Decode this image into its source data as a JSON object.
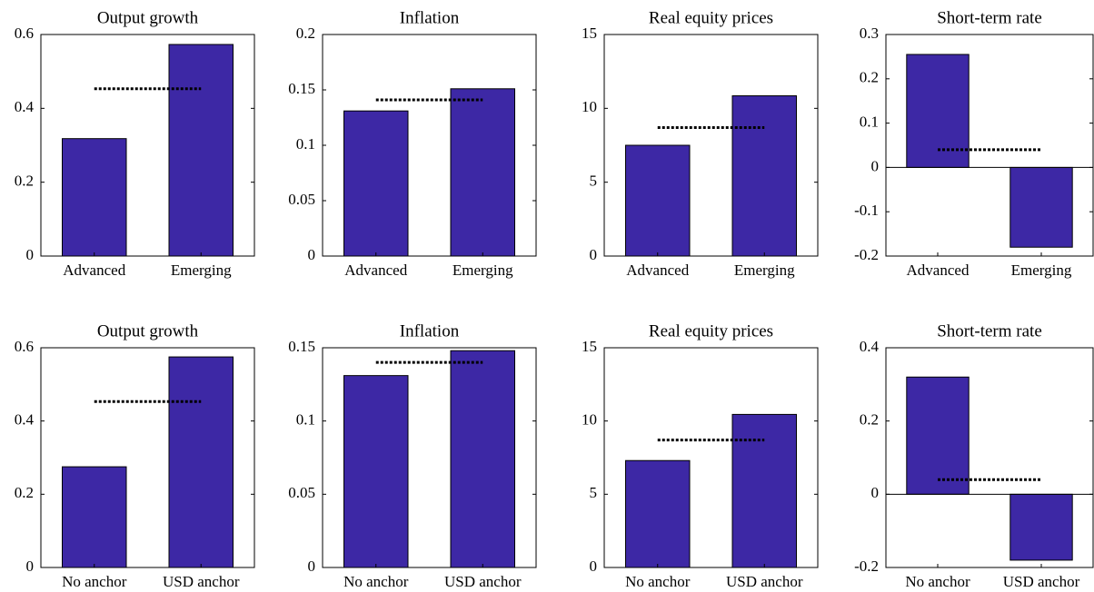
{
  "chart_data": [
    {
      "type": "bar",
      "title": "Output growth",
      "categories": [
        "Advanced",
        "Emerging"
      ],
      "values": [
        0.318,
        0.573
      ],
      "reference_line": 0.453,
      "color": "#3d28a5",
      "ylim": [
        0,
        0.6
      ],
      "yticks": [
        0,
        0.2,
        0.4,
        0.6
      ]
    },
    {
      "type": "bar",
      "title": "Inflation",
      "categories": [
        "Advanced",
        "Emerging"
      ],
      "values": [
        0.131,
        0.151
      ],
      "reference_line": 0.141,
      "color": "#3d28a5",
      "ylim": [
        0,
        0.2
      ],
      "yticks": [
        0,
        0.05,
        0.1,
        0.15,
        0.2
      ]
    },
    {
      "type": "bar",
      "title": "Real equity prices",
      "categories": [
        "Advanced",
        "Emerging"
      ],
      "values": [
        7.5,
        10.85
      ],
      "reference_line": 8.7,
      "color": "#3d28a5",
      "ylim": [
        0,
        15
      ],
      "yticks": [
        0,
        5,
        10,
        15
      ]
    },
    {
      "type": "bar",
      "title": "Short-term rate",
      "categories": [
        "Advanced",
        "Emerging"
      ],
      "values": [
        0.255,
        -0.18
      ],
      "reference_line": 0.04,
      "color": "#3d28a5",
      "ylim": [
        -0.2,
        0.3
      ],
      "yticks": [
        -0.2,
        -0.1,
        0,
        0.1,
        0.2,
        0.3
      ]
    },
    {
      "type": "bar",
      "title": "Output growth",
      "categories": [
        "No anchor",
        "USD anchor"
      ],
      "values": [
        0.275,
        0.575
      ],
      "reference_line": 0.453,
      "color": "#3d28a5",
      "ylim": [
        0,
        0.6
      ],
      "yticks": [
        0,
        0.2,
        0.4,
        0.6
      ]
    },
    {
      "type": "bar",
      "title": "Inflation",
      "categories": [
        "No anchor",
        "USD anchor"
      ],
      "values": [
        0.131,
        0.148
      ],
      "reference_line": 0.14,
      "color": "#3d28a5",
      "ylim": [
        0,
        0.15
      ],
      "yticks": [
        0,
        0.05,
        0.1,
        0.15
      ]
    },
    {
      "type": "bar",
      "title": "Real equity prices",
      "categories": [
        "No anchor",
        "USD anchor"
      ],
      "values": [
        7.3,
        10.45
      ],
      "reference_line": 8.7,
      "color": "#3d28a5",
      "ylim": [
        0,
        15
      ],
      "yticks": [
        0,
        5,
        10,
        15
      ]
    },
    {
      "type": "bar",
      "title": "Short-term rate",
      "categories": [
        "No anchor",
        "USD anchor"
      ],
      "values": [
        0.32,
        -0.18
      ],
      "reference_line": 0.04,
      "color": "#3d28a5",
      "ylim": [
        -0.2,
        0.4
      ],
      "yticks": [
        -0.2,
        0,
        0.2,
        0.4
      ]
    }
  ]
}
